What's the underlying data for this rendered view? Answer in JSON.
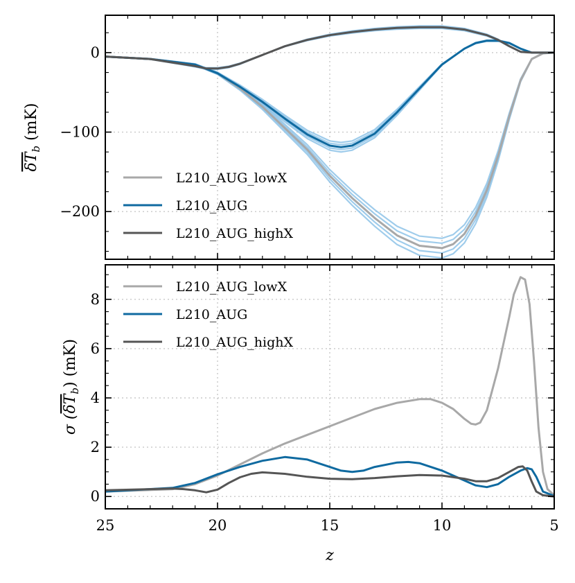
{
  "chart_data": [
    {
      "panel": "top",
      "type": "line",
      "ylabel": "δT̄_b (mK)",
      "ylabel_parts": {
        "symbol": "δT",
        "sub": "b",
        "unit": " (mK)"
      },
      "xlim": [
        25,
        5
      ],
      "ylim": [
        -260,
        47
      ],
      "xticks": [
        25,
        20,
        15,
        10,
        5
      ],
      "yticks": [
        0,
        -100,
        -200
      ],
      "ytick_labels": [
        "0",
        "−100",
        "−200"
      ],
      "grid": true,
      "legend_position": "lower-left",
      "series": [
        {
          "name": "L210_AUG_lowX",
          "color": "#a8a8a8",
          "x": [
            25,
            23,
            21,
            20,
            19,
            18,
            17,
            16,
            15,
            14,
            13,
            12,
            11,
            10,
            9.5,
            9,
            8.5,
            8,
            7.5,
            7,
            6.5,
            6,
            5.5,
            5
          ],
          "y": [
            -5,
            -8,
            -15,
            -26,
            -45,
            -68,
            -95,
            -122,
            -155,
            -183,
            -208,
            -230,
            -243,
            -246,
            -241,
            -228,
            -205,
            -173,
            -130,
            -80,
            -35,
            -8,
            -1,
            0
          ]
        },
        {
          "name": "L210_AUG",
          "color": "#0f6aa0",
          "x": [
            25,
            23,
            21,
            20,
            19,
            18,
            17,
            16,
            15,
            14.5,
            14,
            13,
            12,
            11,
            10,
            9,
            8.5,
            8,
            7.5,
            7,
            6.5,
            6,
            5.5,
            5
          ],
          "y": [
            -5,
            -8,
            -15,
            -26,
            -43,
            -62,
            -83,
            -103,
            -117,
            -119,
            -117,
            -102,
            -75,
            -45,
            -15,
            5,
            12,
            15,
            15,
            12,
            5,
            0,
            0,
            0
          ]
        },
        {
          "name": "L210_AUG_highX",
          "color": "#555555",
          "x": [
            25,
            23,
            21,
            20.5,
            20,
            19.5,
            19,
            18,
            17,
            16,
            15,
            14,
            13,
            12,
            11,
            10,
            9,
            8,
            7.5,
            7,
            6.5,
            6,
            5.5,
            5
          ],
          "y": [
            -5,
            -8,
            -17,
            -20,
            -20,
            -18,
            -14,
            -3,
            8,
            16,
            22,
            26,
            29,
            31,
            32,
            32,
            29,
            22,
            16,
            8,
            1,
            0,
            0,
            0
          ]
        }
      ]
    },
    {
      "panel": "bottom",
      "type": "line",
      "xlabel": "z",
      "ylabel": "σ (δT̄_b) (mK)",
      "ylabel_parts": {
        "sigma": "σ",
        "symbol": "δT",
        "sub": "b",
        "unit": " (mK)"
      },
      "xlim": [
        25,
        5
      ],
      "ylim": [
        -0.5,
        9.4
      ],
      "xticks": [
        25,
        20,
        15,
        10,
        5
      ],
      "yticks": [
        0,
        2,
        4,
        6,
        8
      ],
      "grid": true,
      "legend_position": "top-left",
      "series": [
        {
          "name": "L210_AUG_lowX",
          "color": "#a8a8a8",
          "x": [
            25,
            22,
            21,
            20,
            19,
            18,
            17,
            16,
            15,
            14,
            13,
            12,
            11,
            10.5,
            10,
            9.5,
            9,
            8.7,
            8.5,
            8.3,
            8,
            7.5,
            7,
            6.8,
            6.5,
            6.3,
            6.1,
            5.9,
            5.7,
            5.5,
            5.3,
            5
          ],
          "y": [
            0.2,
            0.3,
            0.5,
            0.85,
            1.3,
            1.75,
            2.15,
            2.5,
            2.85,
            3.2,
            3.55,
            3.8,
            3.95,
            3.95,
            3.8,
            3.55,
            3.15,
            2.95,
            2.92,
            3.0,
            3.5,
            5.2,
            7.3,
            8.2,
            8.9,
            8.8,
            7.8,
            5.5,
            2.8,
            1.0,
            0.3,
            0.05
          ]
        },
        {
          "name": "L210_AUG",
          "color": "#0f6aa0",
          "x": [
            25,
            22,
            21,
            20,
            19,
            18,
            17,
            16,
            15,
            14.5,
            14,
            13.5,
            13,
            12,
            11.5,
            11,
            10,
            9,
            8.5,
            8,
            7.5,
            7,
            6.5,
            6.2,
            6,
            5.8,
            5.5,
            5
          ],
          "y": [
            0.2,
            0.35,
            0.55,
            0.9,
            1.2,
            1.45,
            1.6,
            1.5,
            1.2,
            1.05,
            1.0,
            1.05,
            1.2,
            1.38,
            1.4,
            1.35,
            1.05,
            0.65,
            0.45,
            0.38,
            0.5,
            0.8,
            1.05,
            1.15,
            1.1,
            0.8,
            0.2,
            0.02
          ]
        },
        {
          "name": "L210_AUG_highX",
          "color": "#555555",
          "x": [
            25,
            23,
            22,
            21.5,
            21,
            20.5,
            20,
            19.5,
            19,
            18.5,
            18,
            17,
            16,
            15,
            14,
            13,
            12,
            11,
            10,
            9,
            8.5,
            8,
            7.5,
            7,
            6.6,
            6.4,
            6.2,
            6,
            5.8,
            5.5,
            5
          ],
          "y": [
            0.25,
            0.3,
            0.32,
            0.3,
            0.25,
            0.17,
            0.28,
            0.55,
            0.78,
            0.92,
            0.98,
            0.92,
            0.8,
            0.72,
            0.7,
            0.75,
            0.82,
            0.87,
            0.85,
            0.72,
            0.62,
            0.62,
            0.75,
            1.0,
            1.2,
            1.22,
            1.05,
            0.6,
            0.2,
            0.05,
            0.0
          ]
        }
      ]
    }
  ]
}
